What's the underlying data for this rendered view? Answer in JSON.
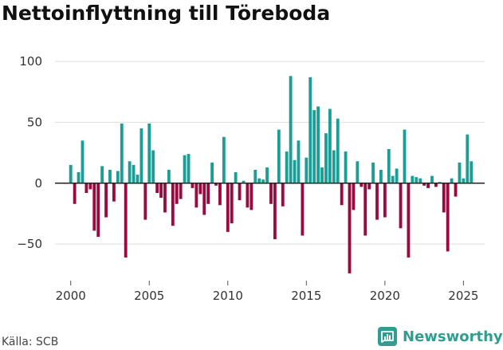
{
  "title": "Nettoinflyttning till Töreboda",
  "source": "Källa: SCB",
  "brand": {
    "name": "Newsworthy",
    "icon": "newsworthy-logo-icon"
  },
  "colors": {
    "positive": "#1a9e96",
    "negative": "#980a40",
    "grid": "#dddddd",
    "zero": "#222222",
    "brand": "#2f9d8f"
  },
  "chart_data": {
    "type": "bar",
    "title": "Nettoinflyttning till Töreboda",
    "xlabel": "",
    "ylabel": "",
    "ylim": [
      -80,
      100
    ],
    "xlim": [
      1999.0,
      2026.35
    ],
    "y_ticks": [
      100,
      50,
      0,
      -50
    ],
    "y_tick_labels": [
      "100",
      "50",
      "0",
      "−50"
    ],
    "x_ticks": [
      2000,
      2005,
      2010,
      2015,
      2020,
      2025
    ],
    "x_tick_labels": [
      "2000",
      "2005",
      "2010",
      "2015",
      "2020",
      "2025"
    ],
    "gridlines": true,
    "periods_per_year": 4,
    "start": 2000.0,
    "series": [
      {
        "name": "Nettoinflyttning",
        "values": [
          15,
          -17,
          9,
          35,
          -8,
          -5,
          -39,
          -44,
          14,
          -28,
          11,
          -15,
          10,
          49,
          -61,
          18,
          15,
          7,
          45,
          -30,
          49,
          27,
          -8,
          -12,
          -24,
          11,
          -35,
          -17,
          -13,
          23,
          24,
          -4,
          -20,
          -9,
          -26,
          -17,
          17,
          -2,
          -18,
          38,
          -40,
          -33,
          9,
          -14,
          2,
          -20,
          -22,
          11,
          4,
          3,
          13,
          -17,
          -46,
          44,
          -19,
          26,
          88,
          19,
          35,
          -43,
          21,
          87,
          60,
          63,
          13,
          41,
          61,
          27,
          53,
          -18,
          26,
          -74,
          -22,
          18,
          -3,
          -43,
          -5,
          17,
          -30,
          11,
          -28,
          28,
          6,
          12,
          -37,
          44,
          -61,
          6,
          5,
          4,
          -2,
          -4,
          6,
          -3,
          1,
          -24,
          -56,
          4,
          -11,
          17,
          4,
          40,
          18
        ]
      }
    ]
  }
}
